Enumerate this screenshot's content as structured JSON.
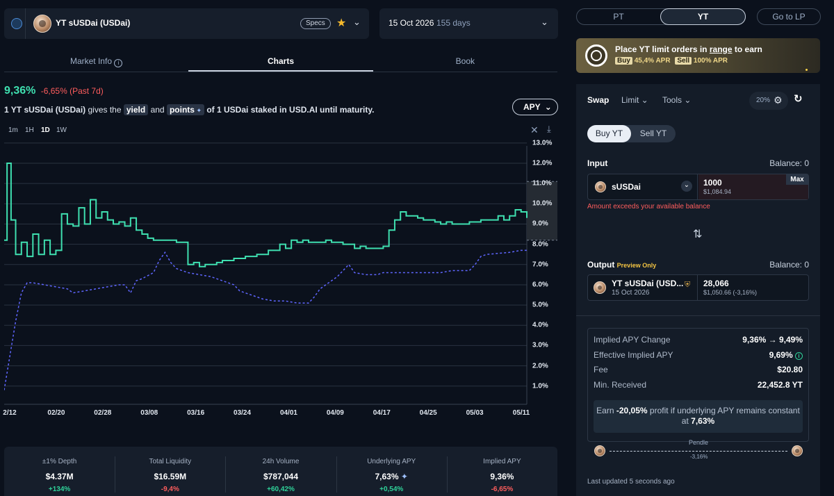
{
  "market": {
    "title": "YT sUSDai (USDai)",
    "specs_label": "Specs",
    "maturity_date": "15 Oct 2026",
    "days_left": "155 days"
  },
  "tabs": [
    "Market Info",
    "Charts",
    "Book"
  ],
  "summary": {
    "apy": "9,36%",
    "change": "-6,65% (Past 7d)",
    "desc_1": "1 YT sUSDai (USDai)",
    "desc_2": "gives the",
    "yield_chip": "yield",
    "desc_3": "and",
    "points_chip": "points",
    "desc_4": "of 1 USDai staked in USD.AI until maturity.",
    "apy_select": "APY"
  },
  "timeframes": [
    "1m",
    "1H",
    "1D",
    "1W"
  ],
  "timeframe_active": "1D",
  "chart_data": {
    "type": "line",
    "x_labels": [
      "2/12",
      "02/20",
      "02/28",
      "03/08",
      "03/16",
      "03/24",
      "04/01",
      "04/09",
      "04/17",
      "04/25",
      "05/03",
      "05/11"
    ],
    "y_ticks": [
      "1.0%",
      "2.0%",
      "3.0%",
      "4.0%",
      "5.0%",
      "6.0%",
      "7.0%",
      "8.0%",
      "9.0%",
      "10.0%",
      "11.0%",
      "12.0%",
      "13.0%"
    ],
    "ylim": [
      0.1,
      13.2
    ],
    "xlim": [
      0,
      91
    ],
    "grid": true,
    "series": [
      {
        "color": "#3fe0b0",
        "style": "step",
        "points": [
          [
            0,
            8.2
          ],
          [
            0.5,
            12.0
          ],
          [
            1.2,
            9.2
          ],
          [
            2,
            7.5
          ],
          [
            3,
            8.1
          ],
          [
            4,
            7.4
          ],
          [
            5,
            8.5
          ],
          [
            6,
            7.5
          ],
          [
            7,
            8.2
          ],
          [
            8,
            7.5
          ],
          [
            9,
            7.7
          ],
          [
            10,
            9.5
          ],
          [
            11,
            9.0
          ],
          [
            12,
            8.9
          ],
          [
            13,
            9.8
          ],
          [
            14,
            9.0
          ],
          [
            15,
            10.2
          ],
          [
            16,
            9.3
          ],
          [
            17,
            9.6
          ],
          [
            18,
            9.2
          ],
          [
            19,
            9.0
          ],
          [
            20,
            9.1
          ],
          [
            21,
            8.9
          ],
          [
            22,
            9.3
          ],
          [
            23,
            8.7
          ],
          [
            24,
            8.5
          ],
          [
            25,
            8.3
          ],
          [
            26,
            8.2
          ],
          [
            27,
            8.2
          ],
          [
            29,
            8.2
          ],
          [
            30,
            8.1
          ],
          [
            31,
            8.1
          ],
          [
            32,
            7.0
          ],
          [
            33,
            7.1
          ],
          [
            34,
            6.9
          ],
          [
            35,
            7.0
          ],
          [
            36,
            7.0
          ],
          [
            37,
            7.1
          ],
          [
            38,
            7.2
          ],
          [
            39,
            7.2
          ],
          [
            40,
            7.3
          ],
          [
            41,
            7.3
          ],
          [
            42,
            7.4
          ],
          [
            43,
            7.4
          ],
          [
            44,
            7.5
          ],
          [
            45,
            7.5
          ],
          [
            46,
            7.7
          ],
          [
            47,
            7.7
          ],
          [
            48,
            8.0
          ],
          [
            49,
            7.8
          ],
          [
            50,
            8.2
          ],
          [
            51,
            8.1
          ],
          [
            52,
            8.2
          ],
          [
            53,
            8.1
          ],
          [
            55,
            8.1
          ],
          [
            56,
            8.2
          ],
          [
            57,
            8.1
          ],
          [
            59,
            8.0
          ],
          [
            60,
            8.0
          ],
          [
            61,
            7.8
          ],
          [
            62,
            7.9
          ],
          [
            63,
            7.8
          ],
          [
            65,
            7.8
          ],
          [
            66,
            7.9
          ],
          [
            67,
            8.7
          ],
          [
            68,
            9.2
          ],
          [
            69,
            9.6
          ],
          [
            70,
            9.4
          ],
          [
            71,
            9.4
          ],
          [
            72,
            9.3
          ],
          [
            73,
            9.2
          ],
          [
            74,
            9.2
          ],
          [
            75,
            9.1
          ],
          [
            76,
            9.0
          ],
          [
            77,
            9.1
          ],
          [
            78,
            9.0
          ],
          [
            80,
            9.0
          ],
          [
            81,
            9.1
          ],
          [
            82,
            9.1
          ],
          [
            83,
            9.2
          ],
          [
            84,
            9.2
          ],
          [
            85,
            9.2
          ],
          [
            86,
            9.4
          ],
          [
            87,
            9.2
          ],
          [
            88,
            9.4
          ],
          [
            89,
            9.7
          ],
          [
            90,
            9.6
          ],
          [
            91,
            9.3
          ]
        ]
      },
      {
        "color": "#5f66ff",
        "style": "dashed",
        "points": [
          [
            0,
            0.8
          ],
          [
            1,
            2.5
          ],
          [
            2,
            4.2
          ],
          [
            3,
            5.6
          ],
          [
            4,
            6.1
          ],
          [
            5,
            6.1
          ],
          [
            7,
            6.0
          ],
          [
            9,
            5.9
          ],
          [
            11,
            5.8
          ],
          [
            12,
            5.6
          ],
          [
            14,
            5.7
          ],
          [
            16,
            5.8
          ],
          [
            18,
            5.9
          ],
          [
            20,
            6.0
          ],
          [
            21,
            6.0
          ],
          [
            22,
            5.6
          ],
          [
            23,
            6.2
          ],
          [
            24,
            6.3
          ],
          [
            26,
            6.6
          ],
          [
            27,
            7.2
          ],
          [
            28,
            7.6
          ],
          [
            29,
            7.1
          ],
          [
            30,
            6.8
          ],
          [
            32,
            6.6
          ],
          [
            34,
            6.5
          ],
          [
            36,
            6.4
          ],
          [
            38,
            6.2
          ],
          [
            40,
            6.0
          ],
          [
            41,
            5.7
          ],
          [
            43,
            5.5
          ],
          [
            45,
            5.3
          ],
          [
            47,
            5.2
          ],
          [
            49,
            5.2
          ],
          [
            51,
            5.1
          ],
          [
            53,
            5.1
          ],
          [
            54,
            5.4
          ],
          [
            55,
            5.8
          ],
          [
            56,
            6.0
          ],
          [
            57,
            6.2
          ],
          [
            58,
            6.4
          ],
          [
            59,
            6.7
          ],
          [
            60,
            7.0
          ],
          [
            61,
            6.6
          ],
          [
            63,
            6.5
          ],
          [
            65,
            6.5
          ],
          [
            66,
            6.6
          ],
          [
            68,
            6.6
          ],
          [
            70,
            6.6
          ],
          [
            72,
            6.6
          ],
          [
            74,
            6.6
          ],
          [
            76,
            6.6
          ],
          [
            78,
            6.7
          ],
          [
            80,
            6.7
          ],
          [
            81,
            6.7
          ],
          [
            82,
            7.0
          ],
          [
            83,
            7.4
          ],
          [
            84,
            7.5
          ],
          [
            86,
            7.55
          ],
          [
            88,
            7.6
          ],
          [
            90,
            7.7
          ],
          [
            91,
            7.7
          ]
        ]
      }
    ]
  },
  "stats": [
    {
      "label": "±1% Depth",
      "value": "$4.37M",
      "change": "+134%",
      "positive": true
    },
    {
      "label": "Total Liquidity",
      "value": "$16.59M",
      "change": "-9,4%",
      "positive": false
    },
    {
      "label": "24h Volume",
      "value": "$787,044",
      "change": "+60,42%",
      "positive": true
    },
    {
      "label": "Underlying APY",
      "value": "7,63%",
      "change": "+0,54%",
      "positive": true
    },
    {
      "label": "Implied APY",
      "value": "9,36%",
      "change": "-6,65%",
      "positive": false
    }
  ],
  "right": {
    "seg": [
      "PT",
      "YT"
    ],
    "go_lp": "Go to LP",
    "banner_pre": "Place YT limit orders in",
    "banner_range": "range",
    "banner_post": "to earn",
    "buy_label": "Buy",
    "buy_apr": "45,4% APR",
    "sell_label": "Sell",
    "sell_apr": "100% APR",
    "mode_tabs": [
      "Swap",
      "Limit",
      "Tools"
    ],
    "slippage": "20%",
    "buy_sell": [
      "Buy YT",
      "Sell YT"
    ],
    "input_label": "Input",
    "input_balance": "Balance: 0",
    "input_token": "sUSDai",
    "input_amount": "1000",
    "input_usd": "$1,084.94",
    "max_label": "Max",
    "error": "Amount exceeds your available balance",
    "output_label": "Output",
    "preview": "Preview Only",
    "output_balance": "Balance: 0",
    "output_token": "YT sUSDai (USD...",
    "output_date": "15 Oct 2026",
    "output_amount": "28,066",
    "output_usd": "$1,050.66 (-3,16%)",
    "details": [
      {
        "label": "Implied APY Change",
        "value": "9,36% → 9,49%"
      },
      {
        "label": "Effective Implied APY",
        "value": "9,69%"
      },
      {
        "label": "Fee",
        "value": "$20.80"
      },
      {
        "label": "Min. Received",
        "value": "22,452.8 YT"
      }
    ],
    "earn_1": "Earn",
    "earn_pct": "-20,05%",
    "earn_2": "profit if underlying APY remains constant at",
    "earn_apy": "7,63%",
    "route_label": "Pendle",
    "route_pct": "-3,16%",
    "last_updated": "Last updated 5 seconds ago"
  }
}
